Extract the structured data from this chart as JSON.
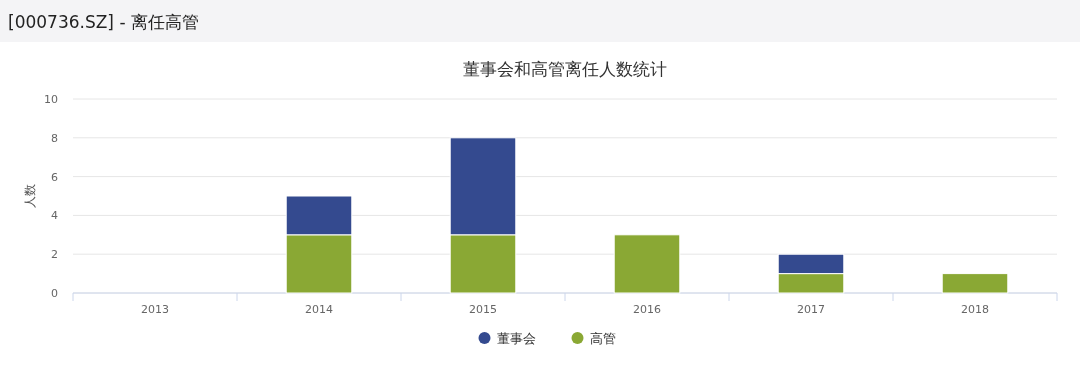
{
  "chart_data": {
    "type": "bar",
    "title": "董事会和高管离任人数统计",
    "ylabel": "人数",
    "annotations": [
      "[000736.SZ] - 离任高管"
    ],
    "categories": [
      "2013",
      "2014",
      "2015",
      "2016",
      "2017",
      "2018"
    ],
    "stacked": true,
    "series": [
      {
        "name": "高管",
        "color": "#8aa834",
        "values": [
          0,
          3,
          3,
          3,
          1,
          1
        ]
      },
      {
        "name": "董事会",
        "color": "#344a8f",
        "values": [
          0,
          2,
          5,
          0,
          1,
          0
        ]
      }
    ],
    "ylim": [
      0,
      10
    ],
    "yticks": [
      0,
      2,
      4,
      6,
      8,
      10
    ],
    "grid": "y",
    "legend": "bottom"
  }
}
